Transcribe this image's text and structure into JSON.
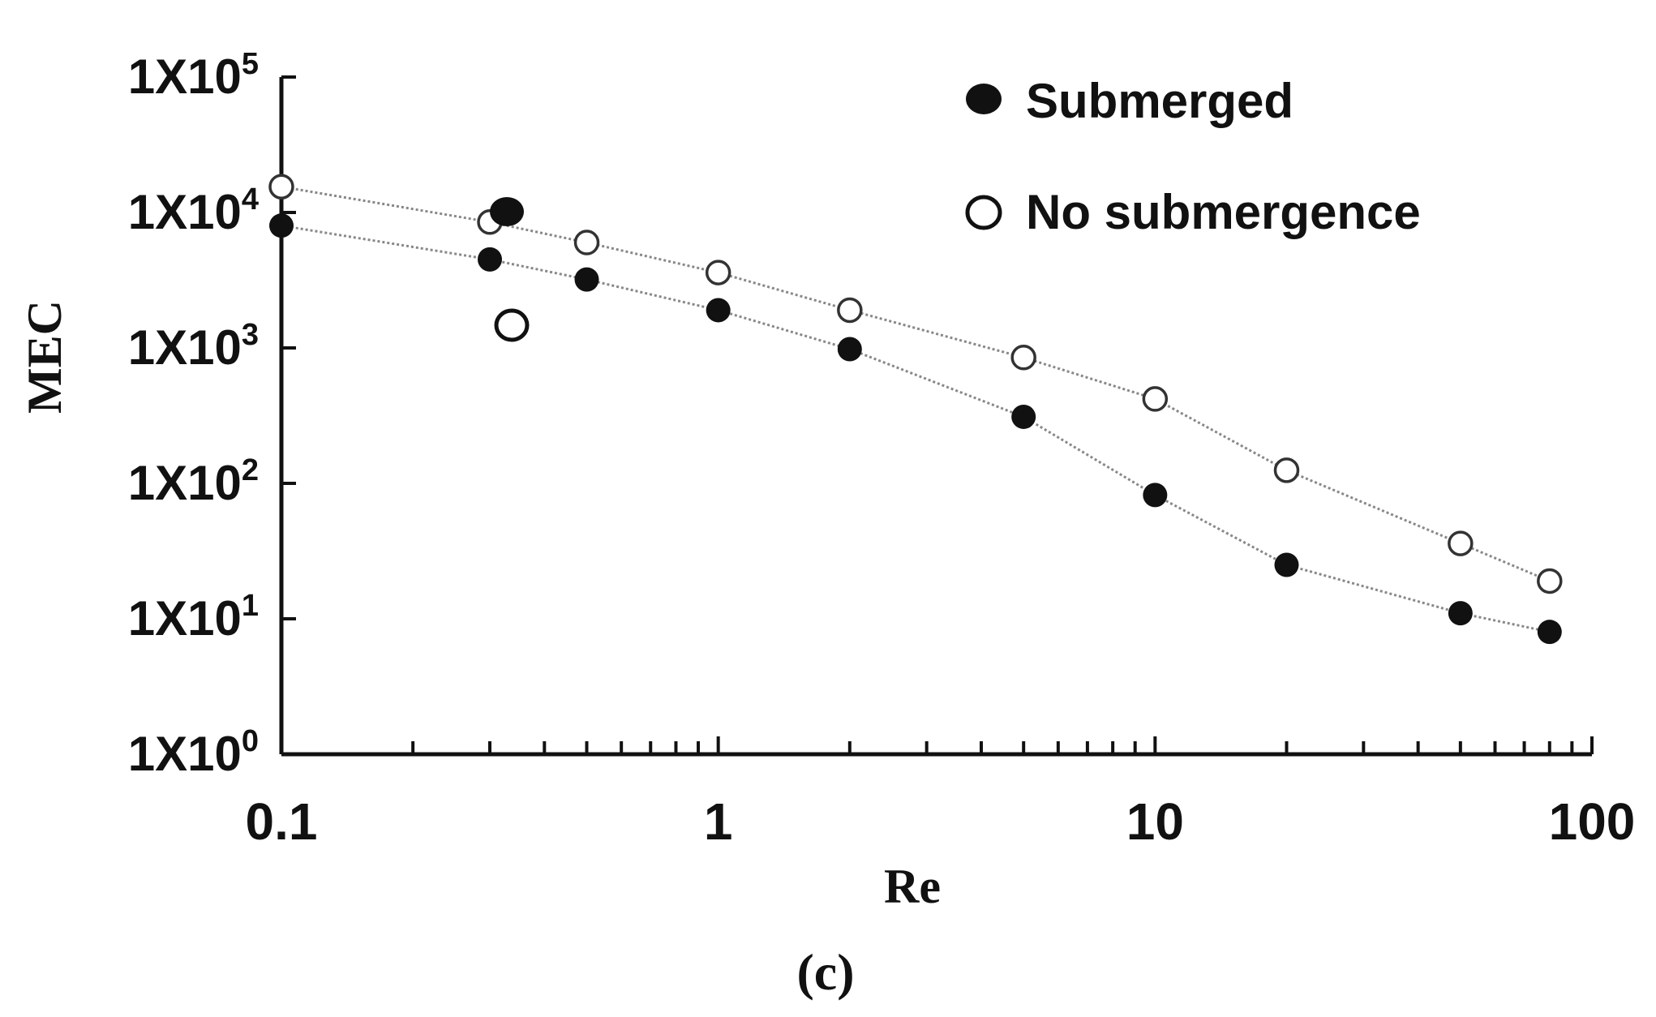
{
  "chart_data": {
    "type": "scatter",
    "title": "",
    "xlabel": "Re",
    "ylabel": "MEC",
    "xscale": "log",
    "yscale": "log",
    "xlim": [
      0.1,
      100
    ],
    "ylim": [
      1,
      100000
    ],
    "x_ticks": [
      {
        "value": 0.1,
        "label": "0.1"
      },
      {
        "value": 1,
        "label": "1"
      },
      {
        "value": 10,
        "label": "10"
      },
      {
        "value": 100,
        "label": "100"
      }
    ],
    "y_ticks": [
      {
        "value": 1,
        "mantissa": "1X10",
        "exp": "0"
      },
      {
        "value": 10,
        "mantissa": "1X10",
        "exp": "1"
      },
      {
        "value": 100,
        "mantissa": "1X10",
        "exp": "2"
      },
      {
        "value": 1000,
        "mantissa": "1X10",
        "exp": "3"
      },
      {
        "value": 10000,
        "mantissa": "1X10",
        "exp": "4"
      },
      {
        "value": 100000,
        "mantissa": "1X10",
        "exp": "5"
      }
    ],
    "series": [
      {
        "name": "Submerged",
        "marker": "filled",
        "x": [
          0.1,
          0.3,
          0.5,
          1,
          2,
          5,
          10,
          20,
          50,
          80
        ],
        "y": [
          8000,
          4500,
          3200,
          1900,
          980,
          310,
          82,
          25,
          11,
          8
        ]
      },
      {
        "name": "No submergence",
        "marker": "open",
        "x": [
          0.1,
          0.3,
          0.5,
          1,
          2,
          5,
          10,
          20,
          50,
          80
        ],
        "y": [
          15500,
          8500,
          6000,
          3600,
          1900,
          850,
          420,
          125,
          36,
          19
        ]
      }
    ],
    "legend": {
      "position": "top-right",
      "entries": [
        {
          "label": "Submerged",
          "marker": "filled"
        },
        {
          "label": "No submergence",
          "marker": "open"
        }
      ]
    },
    "grid": false
  },
  "caption": "(c)"
}
